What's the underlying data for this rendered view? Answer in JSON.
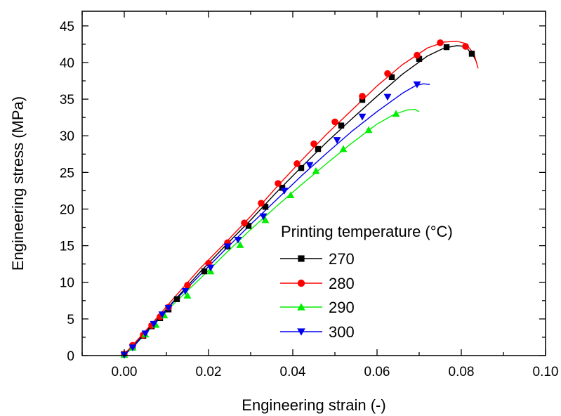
{
  "chart_data": {
    "type": "line",
    "title": "",
    "xlabel": "Engineering strain (-)",
    "ylabel": "Engineering stress (MPa)",
    "xlim": [
      -0.01,
      0.1
    ],
    "ylim": [
      0,
      47
    ],
    "xticks": [
      "0.00",
      "0.02",
      "0.04",
      "0.06",
      "0.08",
      "0.10"
    ],
    "yticks": [
      "0",
      "5",
      "10",
      "15",
      "20",
      "25",
      "30",
      "35",
      "40",
      "45"
    ],
    "grid": false,
    "legend": {
      "title": "Printing temperature (°C)",
      "placement": "lower-right"
    },
    "series": [
      {
        "name": "270",
        "color": "#000000",
        "marker": "square",
        "curve": [
          [
            0,
            0.2
          ],
          [
            0.002,
            1.3
          ],
          [
            0.006,
            3.8
          ],
          [
            0.012,
            7.6
          ],
          [
            0.018,
            11.4
          ],
          [
            0.024,
            15.0
          ],
          [
            0.03,
            18.5
          ],
          [
            0.036,
            22.2
          ],
          [
            0.042,
            25.7
          ],
          [
            0.048,
            29.1
          ],
          [
            0.054,
            32.3
          ],
          [
            0.06,
            35.4
          ],
          [
            0.066,
            38.4
          ],
          [
            0.072,
            40.9
          ],
          [
            0.076,
            42.0
          ],
          [
            0.079,
            42.3
          ],
          [
            0.081,
            42.2
          ],
          [
            0.083,
            40.8
          ],
          [
            0.0835,
            40.2
          ]
        ],
        "points": [
          [
            0,
            0.2
          ],
          [
            0.002,
            1.3
          ],
          [
            0.0045,
            2.7
          ],
          [
            0.0065,
            4.0
          ],
          [
            0.0085,
            5.1
          ],
          [
            0.0105,
            6.3
          ],
          [
            0.0125,
            7.7
          ],
          [
            0.019,
            11.5
          ],
          [
            0.0245,
            14.9
          ],
          [
            0.0295,
            17.7
          ],
          [
            0.0335,
            20.3
          ],
          [
            0.0375,
            22.9
          ],
          [
            0.042,
            25.6
          ],
          [
            0.046,
            28.2
          ],
          [
            0.0515,
            31.4
          ],
          [
            0.0565,
            34.9
          ],
          [
            0.0635,
            38.0
          ],
          [
            0.07,
            40.5
          ],
          [
            0.0765,
            42.1
          ],
          [
            0.0825,
            41.2
          ]
        ]
      },
      {
        "name": "280",
        "color": "#ff0000",
        "marker": "circle",
        "curve": [
          [
            0,
            0.2
          ],
          [
            0.002,
            1.4
          ],
          [
            0.006,
            4.0
          ],
          [
            0.012,
            8.0
          ],
          [
            0.018,
            11.9
          ],
          [
            0.024,
            15.4
          ],
          [
            0.03,
            19.0
          ],
          [
            0.036,
            22.9
          ],
          [
            0.042,
            26.6
          ],
          [
            0.048,
            30.2
          ],
          [
            0.054,
            33.5
          ],
          [
            0.06,
            36.8
          ],
          [
            0.066,
            39.7
          ],
          [
            0.072,
            42.0
          ],
          [
            0.076,
            42.8
          ],
          [
            0.079,
            42.9
          ],
          [
            0.081,
            42.6
          ],
          [
            0.083,
            41.2
          ],
          [
            0.084,
            39.2
          ]
        ],
        "points": [
          [
            0,
            0.2
          ],
          [
            0.002,
            1.4
          ],
          [
            0.0045,
            2.8
          ],
          [
            0.0065,
            4.1
          ],
          [
            0.0085,
            5.3
          ],
          [
            0.0105,
            6.6
          ],
          [
            0.015,
            9.6
          ],
          [
            0.02,
            12.6
          ],
          [
            0.0245,
            15.4
          ],
          [
            0.0285,
            18.1
          ],
          [
            0.0325,
            20.8
          ],
          [
            0.0365,
            23.5
          ],
          [
            0.041,
            26.2
          ],
          [
            0.045,
            28.9
          ],
          [
            0.05,
            31.9
          ],
          [
            0.0565,
            35.4
          ],
          [
            0.0625,
            38.5
          ],
          [
            0.0695,
            41.0
          ],
          [
            0.075,
            42.7
          ],
          [
            0.081,
            42.2
          ]
        ]
      },
      {
        "name": "290",
        "color": "#00ee00",
        "marker": "triangle-up",
        "curve": [
          [
            0,
            0.1
          ],
          [
            0.002,
            1.1
          ],
          [
            0.006,
            3.6
          ],
          [
            0.012,
            7.2
          ],
          [
            0.018,
            10.5
          ],
          [
            0.024,
            13.9
          ],
          [
            0.03,
            17.2
          ],
          [
            0.036,
            20.3
          ],
          [
            0.042,
            23.3
          ],
          [
            0.048,
            26.2
          ],
          [
            0.054,
            29.0
          ],
          [
            0.06,
            31.6
          ],
          [
            0.064,
            32.9
          ],
          [
            0.067,
            33.5
          ],
          [
            0.069,
            33.6
          ],
          [
            0.07,
            33.3
          ]
        ],
        "points": [
          [
            0,
            0.1
          ],
          [
            0.002,
            1.1
          ],
          [
            0.005,
            2.9
          ],
          [
            0.0075,
            4.2
          ],
          [
            0.0095,
            5.5
          ],
          [
            0.015,
            8.2
          ],
          [
            0.0205,
            11.5
          ],
          [
            0.0275,
            15.1
          ],
          [
            0.0335,
            18.5
          ],
          [
            0.0395,
            21.9
          ],
          [
            0.0455,
            25.2
          ],
          [
            0.052,
            28.2
          ],
          [
            0.058,
            30.8
          ],
          [
            0.0645,
            33.0
          ]
        ]
      },
      {
        "name": "300",
        "color": "#0000ee",
        "marker": "triangle-down",
        "curve": [
          [
            0,
            0.1
          ],
          [
            0.002,
            1.1
          ],
          [
            0.006,
            3.7
          ],
          [
            0.012,
            7.5
          ],
          [
            0.018,
            11.0
          ],
          [
            0.024,
            14.5
          ],
          [
            0.03,
            17.9
          ],
          [
            0.036,
            21.2
          ],
          [
            0.042,
            24.5
          ],
          [
            0.048,
            27.6
          ],
          [
            0.054,
            30.6
          ],
          [
            0.06,
            33.3
          ],
          [
            0.066,
            35.8
          ],
          [
            0.069,
            36.8
          ],
          [
            0.071,
            37.1
          ],
          [
            0.0725,
            37.0
          ]
        ],
        "points": [
          [
            0,
            0.1
          ],
          [
            0.002,
            1.1
          ],
          [
            0.005,
            3.0
          ],
          [
            0.007,
            4.3
          ],
          [
            0.009,
            5.6
          ],
          [
            0.0105,
            6.5
          ],
          [
            0.0145,
            8.8
          ],
          [
            0.0205,
            12.0
          ],
          [
            0.0245,
            14.9
          ],
          [
            0.027,
            15.8
          ],
          [
            0.033,
            19.0
          ],
          [
            0.038,
            22.5
          ],
          [
            0.044,
            26.0
          ],
          [
            0.0505,
            29.4
          ],
          [
            0.0565,
            32.6
          ],
          [
            0.0625,
            35.3
          ],
          [
            0.0695,
            37.0
          ]
        ]
      }
    ]
  }
}
